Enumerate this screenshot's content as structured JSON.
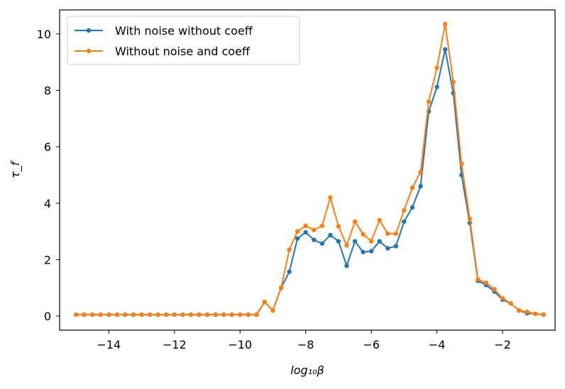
{
  "chart_data": {
    "type": "line",
    "xlabel": "log₁₀β",
    "ylabel": "τ_f",
    "xlim": [
      -15.5,
      -0.4
    ],
    "ylim": [
      -0.5,
      10.85
    ],
    "xticks": [
      -14,
      -12,
      -10,
      -8,
      -6,
      -4,
      -2
    ],
    "xtick_labels": [
      "−14",
      "−12",
      "−10",
      "−8",
      "−6",
      "−4",
      "−2"
    ],
    "yticks": [
      0,
      2,
      4,
      6,
      8,
      10
    ],
    "ytick_labels": [
      "0",
      "2",
      "4",
      "6",
      "8",
      "10"
    ],
    "grid": false,
    "legend_position": "upper-left",
    "x": [
      -15,
      -14.75,
      -14.5,
      -14.25,
      -14,
      -13.75,
      -13.5,
      -13.25,
      -13,
      -12.75,
      -12.5,
      -12.25,
      -12,
      -11.75,
      -11.5,
      -11.25,
      -11,
      -10.75,
      -10.5,
      -10.25,
      -10,
      -9.75,
      -9.5,
      -9.25,
      -9,
      -8.75,
      -8.5,
      -8.25,
      -8,
      -7.75,
      -7.5,
      -7.25,
      -7,
      -6.75,
      -6.5,
      -6.25,
      -6,
      -5.75,
      -5.5,
      -5.25,
      -5,
      -4.75,
      -4.5,
      -4.25,
      -4,
      -3.75,
      -3.5,
      -3.25,
      -3,
      -2.75,
      -2.5,
      -2.25,
      -2,
      -1.75,
      -1.5,
      -1.25,
      -1,
      -0.75
    ],
    "series": [
      {
        "name": "With noise without coeff",
        "color": "#1f77b4",
        "values": [
          0.05,
          0.05,
          0.05,
          0.05,
          0.05,
          0.05,
          0.05,
          0.05,
          0.05,
          0.05,
          0.05,
          0.05,
          0.05,
          0.05,
          0.05,
          0.05,
          0.05,
          0.05,
          0.05,
          0.05,
          0.05,
          0.05,
          0.05,
          0.5,
          0.2,
          1.0,
          1.57,
          2.75,
          2.97,
          2.7,
          2.57,
          2.87,
          2.65,
          1.78,
          2.65,
          2.27,
          2.3,
          2.65,
          2.4,
          2.48,
          3.35,
          3.85,
          4.6,
          7.25,
          8.12,
          9.45,
          7.9,
          5.0,
          3.3,
          1.25,
          1.1,
          0.87,
          0.58,
          0.45,
          0.2,
          0.1,
          0.08,
          0.05
        ]
      },
      {
        "name": "Without noise and coeff",
        "color": "#ff7f0e",
        "values": [
          0.05,
          0.05,
          0.05,
          0.05,
          0.05,
          0.05,
          0.05,
          0.05,
          0.05,
          0.05,
          0.05,
          0.05,
          0.05,
          0.05,
          0.05,
          0.05,
          0.05,
          0.05,
          0.05,
          0.05,
          0.05,
          0.05,
          0.05,
          0.5,
          0.2,
          1.0,
          2.35,
          3.0,
          3.2,
          3.05,
          3.2,
          4.2,
          3.18,
          2.5,
          3.35,
          2.9,
          2.65,
          3.4,
          2.92,
          2.92,
          3.75,
          4.55,
          5.1,
          7.6,
          8.8,
          10.35,
          8.3,
          5.4,
          3.45,
          1.3,
          1.18,
          0.95,
          0.63,
          0.45,
          0.2,
          0.15,
          0.08,
          0.05
        ]
      }
    ]
  }
}
